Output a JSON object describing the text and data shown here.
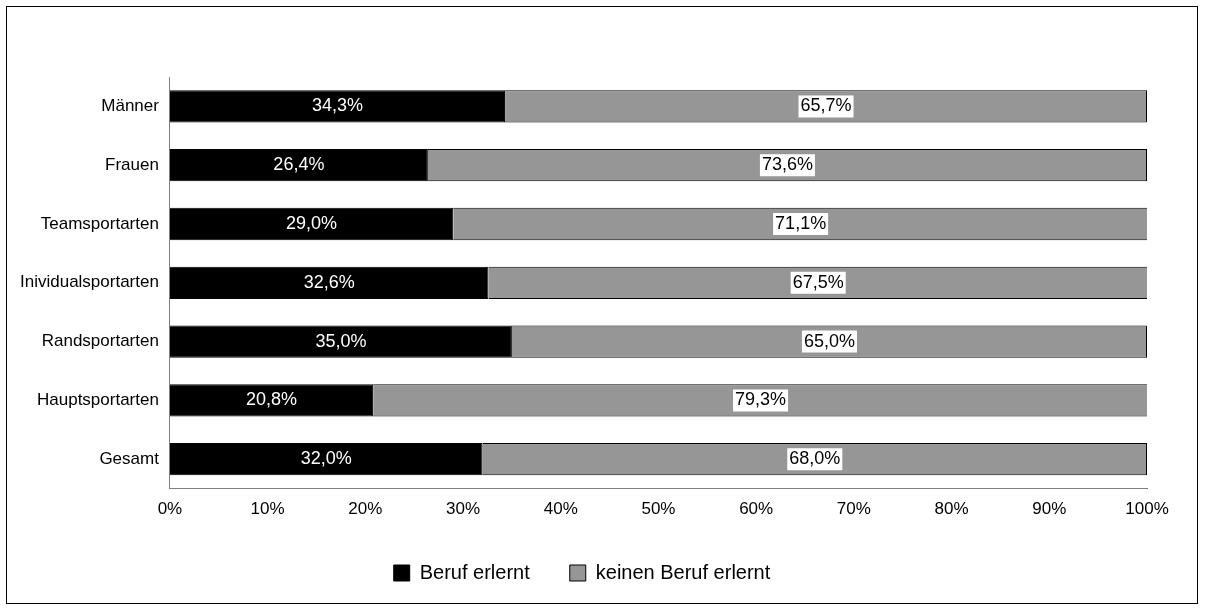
{
  "chart_data": {
    "type": "bar",
    "orientation": "horizontal",
    "stacked": true,
    "categories": [
      "Männer",
      "Frauen",
      "Teamsportarten",
      "Inividualsportarten",
      "Randsportarten",
      "Hauptsportarten",
      "Gesamt"
    ],
    "series": [
      {
        "name": "Beruf erlernt",
        "color": "#000000",
        "values": [
          34.3,
          26.4,
          29.0,
          32.6,
          35.0,
          20.8,
          32.0
        ],
        "value_labels": [
          "34,3%",
          "26,4%",
          "29,0%",
          "32,6%",
          "35,0%",
          "20,8%",
          "32,0%"
        ]
      },
      {
        "name": "keinen Beruf erlernt",
        "color": "#969696",
        "values": [
          65.7,
          73.6,
          71.1,
          67.5,
          65.0,
          79.3,
          68.0
        ],
        "value_labels": [
          "65,7%",
          "73,6%",
          "71,1%",
          "67,5%",
          "65,0%",
          "79,3%",
          "68,0%"
        ]
      }
    ],
    "xlim": [
      0,
      100
    ],
    "xticks": [
      {
        "value": 0,
        "label": "0%"
      },
      {
        "value": 10,
        "label": "10%"
      },
      {
        "value": 20,
        "label": "20%"
      },
      {
        "value": 30,
        "label": "30%"
      },
      {
        "value": 40,
        "label": "40%"
      },
      {
        "value": 50,
        "label": "50%"
      },
      {
        "value": 60,
        "label": "60%"
      },
      {
        "value": 70,
        "label": "70%"
      },
      {
        "value": 80,
        "label": "80%"
      },
      {
        "value": 90,
        "label": "90%"
      },
      {
        "value": 100,
        "label": "100%"
      }
    ],
    "grid": false,
    "legend": "bottom"
  }
}
